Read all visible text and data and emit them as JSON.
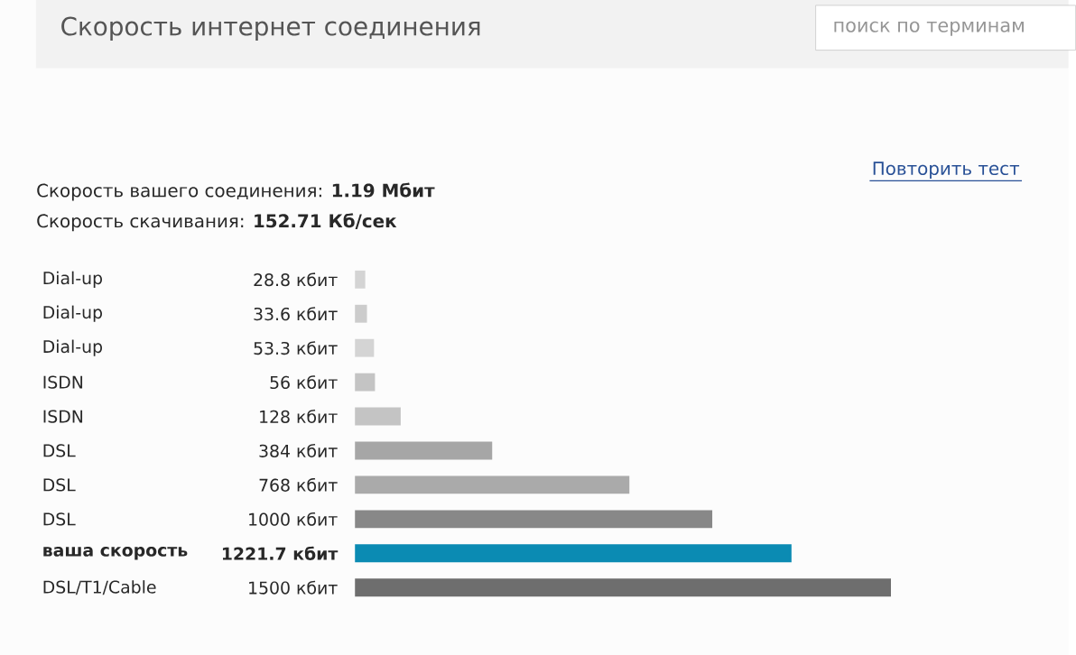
{
  "chart_data": {
    "type": "bar",
    "orientation": "horizontal",
    "title": "Скорость интернет соединения",
    "categories": [
      "Dial-up",
      "Dial-up",
      "Dial-up",
      "ISDN",
      "ISDN",
      "DSL",
      "DSL",
      "DSL",
      "**ваша скорость**",
      "DSL/T1/Cable"
    ],
    "values": [
      28.8,
      33.6,
      53.3,
      56,
      128,
      384,
      768,
      1000,
      1221.7,
      1500
    ],
    "value_labels": [
      "28.8 кбит",
      "33.6 кбит",
      "53.3 кбит",
      "56 кбит",
      "128 кбит",
      "384 кбит",
      "768 кбит",
      "1000 кбит",
      "**1221.7 кбит**",
      "1500 кбит"
    ],
    "colors": [
      "#d4d4d4",
      "#cccccc",
      "#d4d4d4",
      "#c4c4c4",
      "#c4c4c4",
      "#a6a6a6",
      "#aaaaaa",
      "#888888",
      "#0b8bb3",
      "#6e6e6e"
    ],
    "annotations": [
      "поиск по терминам",
      "Повторить тест",
      "Скорость вашего соединения: **1.19 Мбит**",
      "Скорость скачивания: **152.71 Кб/сек**"
    ]
  }
}
